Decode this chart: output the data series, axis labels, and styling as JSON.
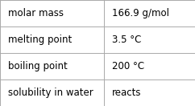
{
  "rows": [
    [
      "molar mass",
      "166.9 g/mol"
    ],
    [
      "melting point",
      "3.5 °C"
    ],
    [
      "boiling point",
      "200 °C"
    ],
    [
      "solubility in water",
      "reacts"
    ]
  ],
  "col_split": 0.535,
  "background_color": "#ffffff",
  "border_color": "#aaaaaa",
  "text_color": "#000000",
  "font_size": 8.5,
  "fig_width": 2.42,
  "fig_height": 1.32,
  "dpi": 100
}
